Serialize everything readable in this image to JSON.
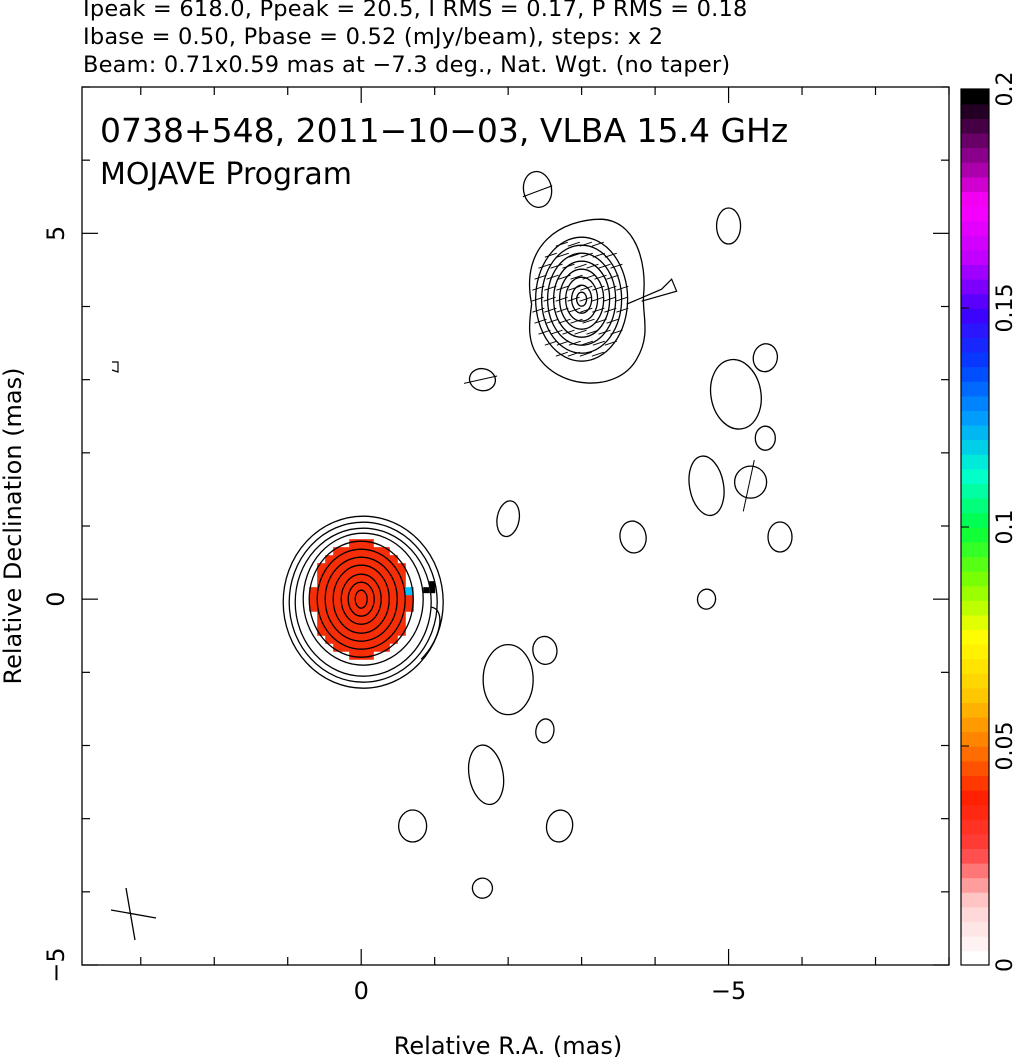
{
  "header": {
    "line1": "Ipeak = 618.0, Ppeak = 20.5, I RMS = 0.17, P RMS = 0.18",
    "line2": "Ibase = 0.50, Pbase = 0.52 (mJy/beam), steps: x 2",
    "line3": "Beam: 0.71x0.59 mas at −7.3 deg., Nat. Wgt. (no taper)"
  },
  "chart_data": {
    "type": "contour",
    "title": "0738+548, 2011−10−03, VLBA 15.4 GHz",
    "subtitle": "MOJAVE Program",
    "xlabel": "Relative R.A. (mas)",
    "ylabel": "Relative Declination (mas)",
    "xlim": [
      3.8,
      -8.0
    ],
    "ylim": [
      -5.0,
      7.0
    ],
    "xticks": [
      0,
      -5
    ],
    "xtick_labels": [
      "0",
      "−5"
    ],
    "yticks": [
      -5,
      0,
      5
    ],
    "ytick_labels": [
      "−5",
      "0",
      "5"
    ],
    "colorbar": {
      "range": [
        0,
        0.2
      ],
      "ticks": [
        0,
        0.05,
        0.1,
        0.15,
        0.2
      ],
      "tick_labels": [
        "0",
        "0.05",
        "0.1",
        "0.15",
        "0.2"
      ],
      "colors": [
        "#ffffff",
        "#ffd0d0",
        "#ff4040",
        "#ff2000",
        "#ff8000",
        "#ffd000",
        "#ffff00",
        "#80ff00",
        "#00ff40",
        "#00ffd0",
        "#00a0ff",
        "#0040ff",
        "#4000ff",
        "#c000ff",
        "#ff00ff",
        "#800080",
        "#000000"
      ]
    },
    "beam": {
      "major": 0.71,
      "minor": 0.59,
      "pa_deg": -7.3
    },
    "core": {
      "x": 0.0,
      "y": 0.0,
      "peak_mJy": 618.0,
      "contour_levels": 11
    },
    "components": [
      {
        "x": -3.0,
        "y": 4.1,
        "contour_levels": 8,
        "has_polarization_ticks": true
      }
    ],
    "noise_islands": [
      {
        "x": -2.4,
        "y": 5.6
      },
      {
        "x": -5.0,
        "y": 5.1
      },
      {
        "x": -5.5,
        "y": 3.3
      },
      {
        "x": -5.1,
        "y": 2.8
      },
      {
        "x": -5.5,
        "y": 2.2
      },
      {
        "x": -1.65,
        "y": 3.0
      },
      {
        "x": -4.7,
        "y": 1.55
      },
      {
        "x": -5.3,
        "y": 1.6
      },
      {
        "x": -2.0,
        "y": 1.1
      },
      {
        "x": -3.7,
        "y": 0.85
      },
      {
        "x": -5.7,
        "y": 0.85
      },
      {
        "x": -4.7,
        "y": 0.0
      },
      {
        "x": -2.5,
        "y": -0.7
      },
      {
        "x": -2.0,
        "y": -1.1
      },
      {
        "x": -2.5,
        "y": -1.8
      },
      {
        "x": -1.7,
        "y": -2.4
      },
      {
        "x": -0.7,
        "y": -3.1
      },
      {
        "x": -2.7,
        "y": -3.1
      },
      {
        "x": -1.65,
        "y": -3.95
      }
    ],
    "grid": false,
    "legend": "none"
  }
}
